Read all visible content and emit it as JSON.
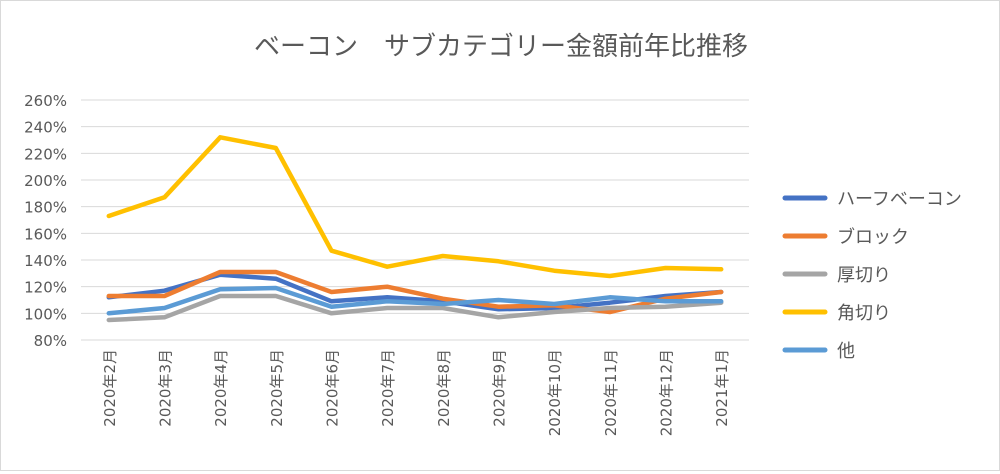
{
  "chart_data": {
    "type": "line",
    "title": "ベーコン　サブカテゴリー金額前年比推移",
    "xlabel": "",
    "ylabel": "",
    "ylim": [
      80,
      260
    ],
    "y_ticks": [
      80,
      100,
      120,
      140,
      160,
      180,
      200,
      220,
      240,
      260
    ],
    "y_tick_labels": [
      "80%",
      "100%",
      "120%",
      "140%",
      "160%",
      "180%",
      "200%",
      "220%",
      "240%",
      "260%"
    ],
    "grid": true,
    "legend_position": "right",
    "categories": [
      "2020年2月",
      "2020年3月",
      "2020年4月",
      "2020年5月",
      "2020年6月",
      "2020年7月",
      "2020年8月",
      "2020年9月",
      "2020年10月",
      "2020年11月",
      "2020年12月",
      "2021年1月"
    ],
    "series": [
      {
        "name": "ハーフベーコン",
        "color": "#4472c4",
        "values": [
          112,
          117,
          129,
          126,
          109,
          112,
          109,
          103,
          104,
          108,
          113,
          116
        ]
      },
      {
        "name": "ブロック",
        "color": "#ed7d31",
        "values": [
          113,
          113,
          131,
          131,
          116,
          120,
          111,
          105,
          106,
          101,
          111,
          116
        ]
      },
      {
        "name": "厚切り",
        "color": "#a5a5a5",
        "values": [
          95,
          97,
          113,
          113,
          100,
          104,
          104,
          97,
          101,
          104,
          105,
          108
        ]
      },
      {
        "name": "角切り",
        "color": "#ffc000",
        "values": [
          173,
          187,
          232,
          224,
          147,
          135,
          143,
          139,
          132,
          128,
          134,
          133
        ]
      },
      {
        "name": "他",
        "color": "#5b9bd5",
        "values": [
          100,
          104,
          118,
          119,
          105,
          109,
          107,
          110,
          107,
          112,
          109,
          109
        ]
      }
    ]
  }
}
